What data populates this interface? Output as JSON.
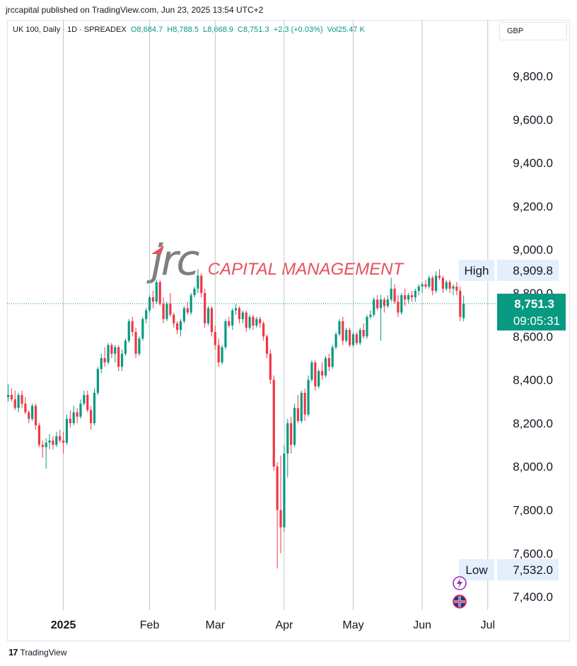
{
  "header": {
    "published_text": "jrccapital published on TradingView.com, Jun 23, 2025 13:54 UTC+2"
  },
  "legend": {
    "symbol": "UK 100, Daily · 1D · SPREADEX",
    "open": "O8,684.7",
    "high": "H8,788.5",
    "low": "L8,668.9",
    "close": "C8,751.3",
    "change": "+2.3 (+0.03%)",
    "volume": "Vol25.47 K"
  },
  "currency": "GBP",
  "watermark": {
    "brand": "jrc",
    "subtitle": "CAPITAL MANAGEMENT"
  },
  "footer": {
    "brand": "TradingView"
  },
  "colors": {
    "up": "#089981",
    "down": "#f23645",
    "grid": "#b2b5be",
    "price_line": "#089981",
    "badge_bg": "#e3effd"
  },
  "icons": [
    "bolt-event-icon",
    "uk-flag-icon"
  ],
  "chart_data": {
    "type": "candlestick",
    "title": "UK 100, Daily",
    "ylim": [
      7250,
      10150
    ],
    "y_ticks": [
      "9,800.0",
      "9,600.0",
      "9,400.0",
      "9,200.0",
      "9,000.0",
      "8,800.0",
      "8,600.0",
      "8,400.0",
      "8,200.0",
      "8,000.0",
      "7,800.0",
      "7,600.0",
      "7,400.0"
    ],
    "y_tick_values": [
      9800,
      9600,
      9400,
      9200,
      9000,
      8800,
      8600,
      8400,
      8200,
      8000,
      7800,
      7600,
      7400
    ],
    "x_ticks": [
      "2025",
      "Feb",
      "Mar",
      "Apr",
      "May",
      "Jun",
      "Jul"
    ],
    "x_tick_index": [
      16,
      41,
      60,
      80,
      100,
      120,
      139
    ],
    "high_badge": {
      "label": "High",
      "value": "8,909.8",
      "price": 8909.8
    },
    "low_badge": {
      "label": "Low",
      "value": "7,532.0",
      "price": 7532
    },
    "last_price": {
      "value": "8,751.3",
      "countdown": "09:05:31",
      "price": 8751.3
    },
    "candles": [
      [
        8320,
        8380,
        8300,
        8330
      ],
      [
        8330,
        8360,
        8300,
        8310
      ],
      [
        8310,
        8350,
        8260,
        8270
      ],
      [
        8270,
        8340,
        8250,
        8330
      ],
      [
        8330,
        8350,
        8270,
        8290
      ],
      [
        8290,
        8320,
        8240,
        8250
      ],
      [
        8250,
        8260,
        8200,
        8220
      ],
      [
        8220,
        8290,
        8210,
        8280
      ],
      [
        8280,
        8290,
        8170,
        8190
      ],
      [
        8190,
        8200,
        8090,
        8100
      ],
      [
        8100,
        8120,
        8040,
        8090
      ],
      [
        8090,
        8130,
        7990,
        8110
      ],
      [
        8110,
        8150,
        8080,
        8120
      ],
      [
        8120,
        8140,
        8080,
        8100
      ],
      [
        8100,
        8160,
        8090,
        8140
      ],
      [
        8140,
        8170,
        8110,
        8120
      ],
      [
        8120,
        8160,
        8060,
        8110
      ],
      [
        8110,
        8240,
        8100,
        8220
      ],
      [
        8220,
        8260,
        8180,
        8200
      ],
      [
        8200,
        8280,
        8190,
        8250
      ],
      [
        8250,
        8270,
        8200,
        8230
      ],
      [
        8230,
        8310,
        8220,
        8290
      ],
      [
        8290,
        8350,
        8280,
        8330
      ],
      [
        8330,
        8350,
        8250,
        8260
      ],
      [
        8260,
        8280,
        8170,
        8200
      ],
      [
        8200,
        8360,
        8190,
        8340
      ],
      [
        8340,
        8460,
        8330,
        8450
      ],
      [
        8450,
        8520,
        8430,
        8500
      ],
      [
        8500,
        8550,
        8460,
        8480
      ],
      [
        8480,
        8570,
        8470,
        8560
      ],
      [
        8560,
        8570,
        8500,
        8520
      ],
      [
        8520,
        8560,
        8480,
        8550
      ],
      [
        8550,
        8560,
        8440,
        8460
      ],
      [
        8460,
        8540,
        8440,
        8520
      ],
      [
        8520,
        8590,
        8510,
        8580
      ],
      [
        8580,
        8680,
        8570,
        8670
      ],
      [
        8670,
        8690,
        8600,
        8620
      ],
      [
        8620,
        8640,
        8500,
        8520
      ],
      [
        8520,
        8600,
        8510,
        8590
      ],
      [
        8590,
        8690,
        8580,
        8680
      ],
      [
        8680,
        8730,
        8660,
        8720
      ],
      [
        8720,
        8790,
        8710,
        8780
      ],
      [
        8780,
        8810,
        8730,
        8760
      ],
      [
        8760,
        8860,
        8750,
        8850
      ],
      [
        8850,
        8860,
        8740,
        8750
      ],
      [
        8750,
        8780,
        8660,
        8680
      ],
      [
        8680,
        8760,
        8670,
        8750
      ],
      [
        8750,
        8800,
        8690,
        8700
      ],
      [
        8700,
        8710,
        8640,
        8660
      ],
      [
        8660,
        8670,
        8610,
        8630
      ],
      [
        8630,
        8680,
        8600,
        8670
      ],
      [
        8670,
        8740,
        8660,
        8730
      ],
      [
        8730,
        8760,
        8700,
        8710
      ],
      [
        8710,
        8800,
        8700,
        8790
      ],
      [
        8790,
        8830,
        8780,
        8820
      ],
      [
        8820,
        8910,
        8800,
        8880
      ],
      [
        8880,
        8890,
        8780,
        8800
      ],
      [
        8800,
        8820,
        8640,
        8660
      ],
      [
        8660,
        8740,
        8650,
        8730
      ],
      [
        8730,
        8740,
        8600,
        8620
      ],
      [
        8620,
        8650,
        8540,
        8560
      ],
      [
        8560,
        8590,
        8460,
        8480
      ],
      [
        8480,
        8560,
        8470,
        8550
      ],
      [
        8550,
        8680,
        8540,
        8670
      ],
      [
        8670,
        8690,
        8640,
        8650
      ],
      [
        8650,
        8730,
        8630,
        8720
      ],
      [
        8720,
        8750,
        8700,
        8730
      ],
      [
        8730,
        8740,
        8660,
        8680
      ],
      [
        8680,
        8720,
        8660,
        8710
      ],
      [
        8710,
        8720,
        8620,
        8640
      ],
      [
        8640,
        8700,
        8630,
        8690
      ],
      [
        8690,
        8700,
        8630,
        8650
      ],
      [
        8650,
        8690,
        8640,
        8680
      ],
      [
        8680,
        8690,
        8640,
        8660
      ],
      [
        8660,
        8670,
        8580,
        8600
      ],
      [
        8600,
        8610,
        8500,
        8520
      ],
      [
        8520,
        8540,
        8380,
        8400
      ],
      [
        8400,
        8420,
        7980,
        8000
      ],
      [
        8000,
        8020,
        7530,
        7800
      ],
      [
        7800,
        8050,
        7600,
        7720
      ],
      [
        7720,
        8100,
        7700,
        8060
      ],
      [
        8060,
        8220,
        7950,
        8200
      ],
      [
        8200,
        8230,
        8060,
        8100
      ],
      [
        8100,
        8290,
        8090,
        8270
      ],
      [
        8270,
        8330,
        8200,
        8210
      ],
      [
        8210,
        8350,
        8200,
        8340
      ],
      [
        8340,
        8360,
        8210,
        8240
      ],
      [
        8240,
        8420,
        8230,
        8400
      ],
      [
        8400,
        8490,
        8390,
        8480
      ],
      [
        8480,
        8490,
        8350,
        8370
      ],
      [
        8370,
        8450,
        8360,
        8440
      ],
      [
        8440,
        8480,
        8400,
        8420
      ],
      [
        8420,
        8510,
        8410,
        8500
      ],
      [
        8500,
        8520,
        8440,
        8460
      ],
      [
        8460,
        8560,
        8450,
        8550
      ],
      [
        8550,
        8620,
        8540,
        8610
      ],
      [
        8610,
        8680,
        8600,
        8670
      ],
      [
        8670,
        8690,
        8560,
        8580
      ],
      [
        8580,
        8640,
        8570,
        8630
      ],
      [
        8630,
        8640,
        8550,
        8560
      ],
      [
        8560,
        8620,
        8550,
        8610
      ],
      [
        8610,
        8620,
        8560,
        8570
      ],
      [
        8570,
        8640,
        8560,
        8630
      ],
      [
        8630,
        8660,
        8590,
        8600
      ],
      [
        8600,
        8700,
        8590,
        8690
      ],
      [
        8690,
        8720,
        8680,
        8700
      ],
      [
        8700,
        8780,
        8690,
        8770
      ],
      [
        8770,
        8790,
        8720,
        8730
      ],
      [
        8730,
        8790,
        8580,
        8770
      ],
      [
        8770,
        8780,
        8710,
        8740
      ],
      [
        8740,
        8790,
        8730,
        8770
      ],
      [
        8770,
        8870,
        8760,
        8820
      ],
      [
        8820,
        8840,
        8750,
        8760
      ],
      [
        8760,
        8790,
        8690,
        8710
      ],
      [
        8710,
        8800,
        8700,
        8790
      ],
      [
        8790,
        8820,
        8740,
        8770
      ],
      [
        8770,
        8800,
        8750,
        8790
      ],
      [
        8790,
        8810,
        8760,
        8780
      ],
      [
        8780,
        8820,
        8760,
        8810
      ],
      [
        8810,
        8840,
        8790,
        8830
      ],
      [
        8830,
        8850,
        8800,
        8840
      ],
      [
        8840,
        8860,
        8820,
        8830
      ],
      [
        8830,
        8880,
        8820,
        8870
      ],
      [
        8870,
        8880,
        8790,
        8810
      ],
      [
        8810,
        8900,
        8800,
        8880
      ],
      [
        8880,
        8910,
        8860,
        8870
      ],
      [
        8870,
        8880,
        8800,
        8820
      ],
      [
        8820,
        8860,
        8810,
        8850
      ],
      [
        8850,
        8860,
        8800,
        8820
      ],
      [
        8820,
        8840,
        8790,
        8830
      ],
      [
        8830,
        8850,
        8790,
        8810
      ],
      [
        8810,
        8830,
        8670,
        8690
      ],
      [
        8684.7,
        8788.5,
        8668.9,
        8751.3
      ]
    ]
  }
}
